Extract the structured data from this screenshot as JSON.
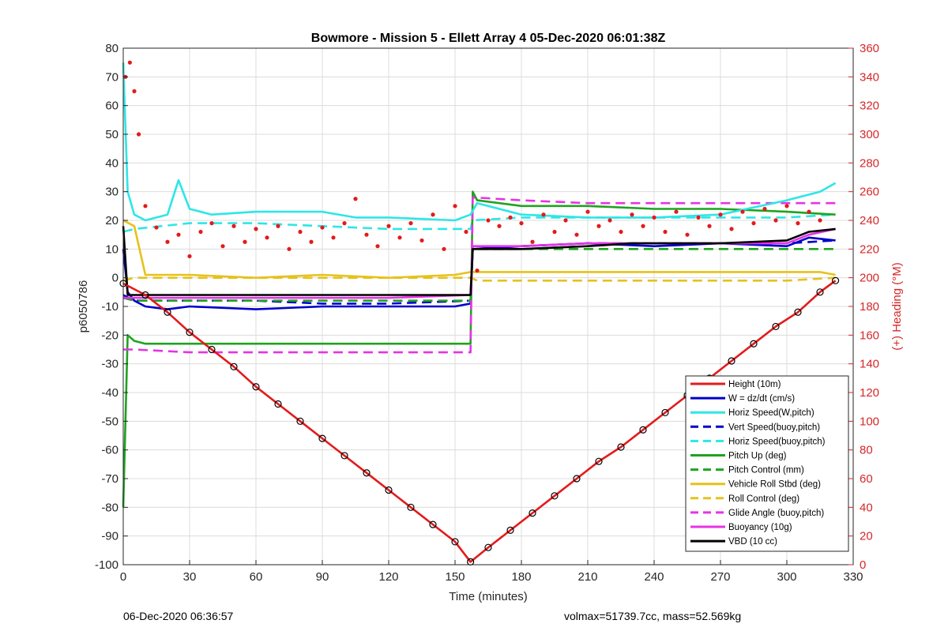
{
  "chart_data": {
    "type": "line",
    "title": "Bowmore - Mission 5 - Ellett Array 4 05-Dec-2020 06:01:38Z",
    "xlabel": "Time (minutes)",
    "ylabel": "p6050786",
    "ylabel_right": "(+) Heading (°M)",
    "xlim": [
      0,
      330
    ],
    "ylim": [
      -100,
      80
    ],
    "ylim_right": [
      0,
      360
    ],
    "xticks": [
      "0",
      "30",
      "60",
      "90",
      "120",
      "150",
      "180",
      "210",
      "240",
      "270",
      "300",
      "330"
    ],
    "yticks": [
      "-100",
      "-90",
      "-80",
      "-70",
      "-60",
      "-50",
      "-40",
      "-30",
      "-20",
      "-10",
      "0",
      "10",
      "20",
      "30",
      "40",
      "50",
      "60",
      "70",
      "80"
    ],
    "yticks_right": [
      "0",
      "20",
      "40",
      "60",
      "80",
      "100",
      "120",
      "140",
      "160",
      "180",
      "200",
      "220",
      "240",
      "260",
      "280",
      "300",
      "320",
      "340",
      "360"
    ],
    "grid": true,
    "legend_position": "bottom-right",
    "series": [
      {
        "name": "Height (10m)",
        "color": "#e31a1c",
        "style": "solid",
        "x": [
          0,
          10,
          20,
          30,
          40,
          50,
          60,
          70,
          80,
          90,
          100,
          110,
          120,
          130,
          140,
          150,
          157,
          165,
          175,
          185,
          195,
          205,
          215,
          225,
          235,
          245,
          255,
          265,
          275,
          285,
          295,
          305,
          315,
          322
        ],
        "y": [
          -2,
          -6,
          -12,
          -19,
          -25,
          -31,
          -38,
          -44,
          -50,
          -56,
          -62,
          -68,
          -74,
          -80,
          -86,
          -92,
          -99,
          -94,
          -88,
          -82,
          -76,
          -70,
          -64,
          -59,
          -53,
          -47,
          -41,
          -35,
          -29,
          -23,
          -17,
          -12,
          -5,
          -1
        ]
      },
      {
        "name": "W = dz/dt (cm/s)",
        "color": "#0000cc",
        "style": "solid",
        "x": [
          0,
          2,
          5,
          10,
          20,
          30,
          60,
          90,
          120,
          150,
          157,
          158,
          180,
          210,
          240,
          270,
          300,
          310,
          322
        ],
        "y": [
          10,
          -5,
          -8,
          -10,
          -11,
          -10,
          -11,
          -10,
          -10,
          -10,
          -9,
          10,
          11,
          12,
          11,
          12,
          11,
          14,
          13
        ]
      },
      {
        "name": "Horiz Speed(W,pitch)",
        "color": "#2ee6e6",
        "style": "solid",
        "x": [
          0,
          2,
          5,
          10,
          20,
          25,
          30,
          40,
          60,
          90,
          105,
          120,
          150,
          157,
          160,
          180,
          210,
          240,
          270,
          300,
          315,
          322
        ],
        "y": [
          75,
          30,
          22,
          20,
          22,
          34,
          24,
          22,
          23,
          23,
          21,
          21,
          20,
          22,
          26,
          22,
          21,
          21,
          22,
          27,
          30,
          33
        ]
      },
      {
        "name": "Vert Speed(buoy,pitch)",
        "color": "#0000cc",
        "style": "dashed",
        "x": [
          0,
          5,
          30,
          60,
          90,
          120,
          157,
          158,
          180,
          210,
          240,
          270,
          300,
          322
        ],
        "y": [
          -6,
          -8,
          -8,
          -8,
          -9,
          -9,
          -8,
          10,
          11,
          12,
          12,
          12,
          12,
          13
        ]
      },
      {
        "name": "Horiz Speed(buoy,pitch)",
        "color": "#2ee6e6",
        "style": "dashed",
        "x": [
          0,
          5,
          30,
          60,
          90,
          120,
          157,
          158,
          180,
          210,
          240,
          270,
          300,
          322
        ],
        "y": [
          16,
          17,
          19,
          19,
          18,
          17,
          17,
          20,
          21,
          21,
          21,
          21,
          21,
          22
        ]
      },
      {
        "name": "Pitch Up (deg)",
        "color": "#1fa31f",
        "style": "solid",
        "x": [
          0,
          2,
          5,
          10,
          20,
          30,
          60,
          90,
          120,
          157,
          158,
          160,
          180,
          210,
          240,
          270,
          300,
          322
        ],
        "y": [
          -80,
          -20,
          -22,
          -23,
          -23,
          -23,
          -23,
          -23,
          -23,
          -23,
          30,
          27,
          25,
          25,
          24,
          24,
          23,
          22
        ]
      },
      {
        "name": "Pitch Control (mm)",
        "color": "#1fa31f",
        "style": "dashed",
        "x": [
          0,
          5,
          30,
          60,
          90,
          120,
          157,
          158,
          180,
          210,
          240,
          270,
          300,
          322
        ],
        "y": [
          -7,
          -8,
          -8,
          -8,
          -8,
          -8,
          -8,
          10,
          10,
          10,
          10,
          10,
          10,
          10
        ]
      },
      {
        "name": "Vehicle Roll Stbd (deg)",
        "color": "#e6c21a",
        "style": "solid",
        "x": [
          0,
          5,
          10,
          30,
          60,
          90,
          120,
          150,
          157,
          160,
          180,
          210,
          240,
          270,
          300,
          315,
          322
        ],
        "y": [
          20,
          18,
          1,
          1,
          0,
          1,
          0,
          1,
          2,
          2,
          2,
          2,
          2,
          2,
          2,
          2,
          1
        ]
      },
      {
        "name": "Roll Control (deg)",
        "color": "#e6c21a",
        "style": "dashed",
        "x": [
          0,
          5,
          30,
          60,
          90,
          120,
          150,
          157,
          160,
          180,
          210,
          240,
          270,
          300,
          322
        ],
        "y": [
          -1,
          0,
          0,
          0,
          0,
          0,
          0,
          0,
          -1,
          -1,
          -1,
          -1,
          -1,
          -1,
          0
        ]
      },
      {
        "name": "Glide Angle (buoy,pitch)",
        "color": "#e633e6",
        "style": "dashed",
        "x": [
          0,
          5,
          30,
          60,
          90,
          120,
          157,
          158,
          180,
          210,
          240,
          270,
          300,
          322
        ],
        "y": [
          -25,
          -25,
          -26,
          -26,
          -26,
          -26,
          -26,
          28,
          27,
          26,
          26,
          26,
          26,
          26
        ]
      },
      {
        "name": "Buoyancy (10g)",
        "color": "#e633e6",
        "style": "solid",
        "x": [
          0,
          5,
          30,
          60,
          90,
          120,
          157,
          158,
          180,
          210,
          240,
          270,
          300,
          310,
          322
        ],
        "y": [
          -7,
          -7,
          -7,
          -7,
          -7,
          -7,
          -6,
          11,
          11,
          12,
          12,
          12,
          12,
          15,
          17
        ]
      },
      {
        "name": "VBD (10 cc)",
        "color": "#000000",
        "style": "solid",
        "x": [
          0,
          2,
          5,
          30,
          60,
          90,
          120,
          157,
          158,
          180,
          210,
          230,
          240,
          270,
          300,
          310,
          322
        ],
        "y": [
          18,
          -6,
          -6,
          -6,
          -6,
          -6,
          -6,
          -6,
          10,
          10,
          11,
          12,
          12,
          12,
          13,
          16,
          17
        ]
      }
    ],
    "heading_points": {
      "color": "#e31a1c",
      "axis": "right",
      "x": [
        1,
        3,
        5,
        7,
        10,
        15,
        20,
        25,
        30,
        35,
        40,
        45,
        50,
        55,
        60,
        65,
        70,
        75,
        80,
        85,
        90,
        95,
        100,
        105,
        110,
        115,
        120,
        125,
        130,
        135,
        140,
        145,
        150,
        155,
        160,
        165,
        170,
        175,
        180,
        185,
        190,
        195,
        200,
        205,
        210,
        215,
        220,
        225,
        230,
        235,
        240,
        245,
        250,
        255,
        260,
        265,
        270,
        275,
        280,
        285,
        290,
        295,
        300,
        305,
        310,
        315
      ],
      "y": [
        340,
        350,
        330,
        300,
        250,
        235,
        225,
        230,
        215,
        232,
        238,
        222,
        236,
        225,
        234,
        228,
        236,
        220,
        232,
        225,
        235,
        228,
        238,
        255,
        230,
        222,
        236,
        228,
        238,
        226,
        244,
        220,
        250,
        232,
        205,
        240,
        236,
        242,
        238,
        225,
        244,
        232,
        240,
        230,
        246,
        236,
        240,
        232,
        244,
        236,
        242,
        232,
        246,
        230,
        242,
        236,
        244,
        234,
        246,
        238,
        248,
        240,
        250,
        238,
        246,
        240
      ]
    },
    "footer_left": "06-Dec-2020 06:36:57",
    "footer_right": "volmax=51739.7cc, mass=52.569kg"
  }
}
